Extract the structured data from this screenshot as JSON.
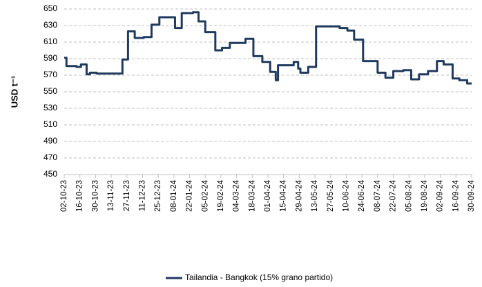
{
  "chart_data": {
    "type": "line",
    "ylabel": "USD t⁻¹",
    "ylim": [
      450,
      650
    ],
    "yticks": [
      450,
      470,
      490,
      510,
      530,
      550,
      570,
      590,
      610,
      630,
      650
    ],
    "xlim": [
      "02-10-23",
      "30-09-24"
    ],
    "xticks": [
      "02-10-23",
      "16-10-23",
      "30-10-23",
      "13-11-23",
      "27-11-23",
      "11-12-23",
      "25-12-23",
      "08-01-24",
      "22-01-24",
      "05-02-24",
      "19-02-24",
      "04-03-24",
      "18-03-24",
      "01-04-24",
      "15-04-24",
      "29-04-24",
      "13-05-24",
      "27-05-24",
      "10-06-24",
      "24-06-24",
      "08-07-24",
      "22-07-24",
      "05-08-24",
      "19-08-24",
      "02-09-24",
      "16-09-24",
      "30-09-24"
    ],
    "grid": true,
    "step": "post",
    "legend": "bottom",
    "series": [
      {
        "name": "Tailandia - Bangkok (15% grano partido)",
        "color": "#1f3a5f",
        "x": [
          "02-10-23",
          "04-10-23",
          "13-10-23",
          "17-10-23",
          "22-10-23",
          "25-10-23",
          "31-10-23",
          "23-11-23",
          "28-11-23",
          "04-12-23",
          "12-12-23",
          "19-12-23",
          "26-12-23",
          "09-01-24",
          "15-01-24",
          "25-01-24",
          "30-01-24",
          "05-02-24",
          "14-02-24",
          "20-02-24",
          "27-02-24",
          "12-03-24",
          "19-03-24",
          "27-03-24",
          "03-04-24",
          "08-04-24",
          "10-04-24",
          "24-04-24",
          "28-04-24",
          "30-04-24",
          "07-05-24",
          "14-05-24",
          "04-06-24",
          "11-06-24",
          "17-06-24",
          "25-06-24",
          "08-07-24",
          "15-07-24",
          "22-07-24",
          "31-07-24",
          "07-08-24",
          "14-08-24",
          "22-08-24",
          "30-08-24",
          "05-09-24",
          "13-09-24",
          "19-09-24",
          "26-09-24",
          "30-09-24"
        ],
        "values": [
          591,
          581,
          580,
          583,
          571,
          573,
          572,
          589,
          623,
          615,
          616,
          631,
          640,
          627,
          645,
          646,
          635,
          622,
          600,
          603,
          609,
          614,
          593,
          586,
          574,
          564,
          582,
          586,
          578,
          573,
          580,
          629,
          627,
          624,
          613,
          587,
          573,
          567,
          575,
          576,
          565,
          571,
          575,
          587,
          583,
          566,
          564,
          560,
          560
        ]
      }
    ]
  }
}
